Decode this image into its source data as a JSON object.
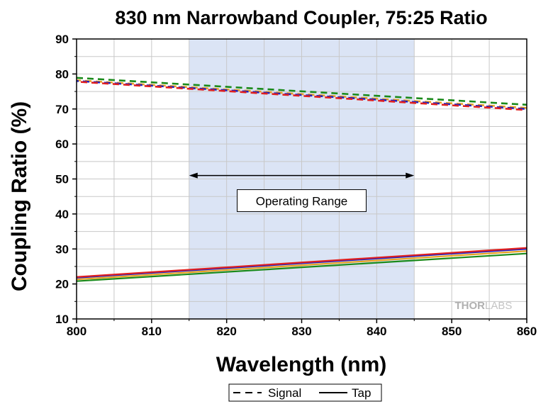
{
  "chart_data": {
    "type": "line",
    "title": "830 nm Narrowband Coupler, 75:25 Ratio",
    "xlabel": "Wavelength (nm)",
    "ylabel": "Coupling Ratio (%)",
    "xlim": [
      800,
      860
    ],
    "ylim": [
      10,
      90
    ],
    "x_ticks": [
      800,
      810,
      820,
      830,
      840,
      850,
      860
    ],
    "y_ticks": [
      10,
      20,
      30,
      40,
      50,
      60,
      70,
      80,
      90
    ],
    "grid": true,
    "shaded_region": {
      "x": [
        815,
        845
      ],
      "color": "#dbe4f5"
    },
    "annotation": {
      "text": "Operating Range",
      "x_range": [
        815,
        845
      ],
      "y": 51
    },
    "legend": {
      "placement": "bottom-center",
      "entries": [
        "Signal",
        "Tap"
      ]
    },
    "watermark": {
      "part1": "THOR",
      "part2": "LABS"
    },
    "series": [
      {
        "group": "Signal",
        "style": "dashed",
        "color": "#1a8a1a",
        "x": [
          800,
          860
        ],
        "y": [
          78.9,
          71.2
        ]
      },
      {
        "group": "Signal",
        "style": "dashed",
        "color": "#e8a020",
        "x": [
          800,
          860
        ],
        "y": [
          78.2,
          70.3
        ]
      },
      {
        "group": "Signal",
        "style": "dashed",
        "color": "#2020c0",
        "x": [
          800,
          860
        ],
        "y": [
          78.0,
          70.0
        ]
      },
      {
        "group": "Signal",
        "style": "dashed",
        "color": "#e02020",
        "x": [
          800,
          860
        ],
        "y": [
          77.8,
          69.7
        ]
      },
      {
        "group": "Tap",
        "style": "solid",
        "color": "#1a8a1a",
        "x": [
          800,
          860
        ],
        "y": [
          20.8,
          28.7
        ]
      },
      {
        "group": "Tap",
        "style": "solid",
        "color": "#e8a020",
        "x": [
          800,
          860
        ],
        "y": [
          21.3,
          29.4
        ]
      },
      {
        "group": "Tap",
        "style": "solid",
        "color": "#2020c0",
        "x": [
          800,
          860
        ],
        "y": [
          21.8,
          30.0
        ]
      },
      {
        "group": "Tap",
        "style": "solid",
        "color": "#e02020",
        "x": [
          800,
          860
        ],
        "y": [
          22.0,
          30.3
        ]
      }
    ]
  }
}
